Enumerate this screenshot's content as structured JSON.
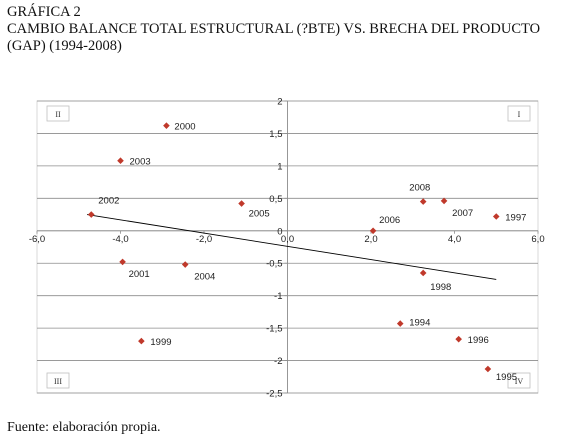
{
  "title_lines": [
    "GRÁFICA 2",
    "CAMBIO BALANCE TOTAL ESTRUCTURAL (?BTE) VS. BRECHA DEL PRODUCTO",
    "(GAP) (1994-2008)"
  ],
  "source": "Fuente: elaboración propia.",
  "chart_data": {
    "type": "scatter",
    "xlim": [
      -6,
      6
    ],
    "ylim": [
      -2.5,
      2
    ],
    "x_ticks": [
      "-6,0",
      "-4,0",
      "-2,0",
      "0,0",
      "2,0",
      "4,0",
      "6,0"
    ],
    "y_ticks": [
      "2",
      "1,5",
      "1",
      "0,5",
      "0",
      "-0,5",
      "-1",
      "-1,5",
      "-2",
      "-2,5"
    ],
    "grid": "horizontal",
    "points": [
      {
        "label": "1994",
        "x": 2.7,
        "y": -1.43
      },
      {
        "label": "1995",
        "x": 4.8,
        "y": -2.13
      },
      {
        "label": "1996",
        "x": 4.1,
        "y": -1.67
      },
      {
        "label": "1997",
        "x": 5.0,
        "y": 0.22
      },
      {
        "label": "1998",
        "x": 3.25,
        "y": -0.65
      },
      {
        "label": "1999",
        "x": -3.5,
        "y": -1.7
      },
      {
        "label": "2000",
        "x": -2.9,
        "y": 1.62
      },
      {
        "label": "2001",
        "x": -3.95,
        "y": -0.48
      },
      {
        "label": "2002",
        "x": -4.7,
        "y": 0.25
      },
      {
        "label": "2003",
        "x": -4.0,
        "y": 1.08
      },
      {
        "label": "2004",
        "x": -2.45,
        "y": -0.52
      },
      {
        "label": "2005",
        "x": -1.1,
        "y": 0.42
      },
      {
        "label": "2006",
        "x": 2.05,
        "y": 0.0
      },
      {
        "label": "2007",
        "x": 3.75,
        "y": 0.46
      },
      {
        "label": "2008",
        "x": 3.25,
        "y": 0.45
      }
    ],
    "trendline": {
      "x": [
        -4.8,
        5.0
      ],
      "y": [
        0.25,
        -0.75
      ]
    },
    "quadrant_labels": [
      "I",
      "II",
      "III",
      "IV"
    ],
    "marker_color": "#C0392B",
    "trend_color": "#000000"
  }
}
